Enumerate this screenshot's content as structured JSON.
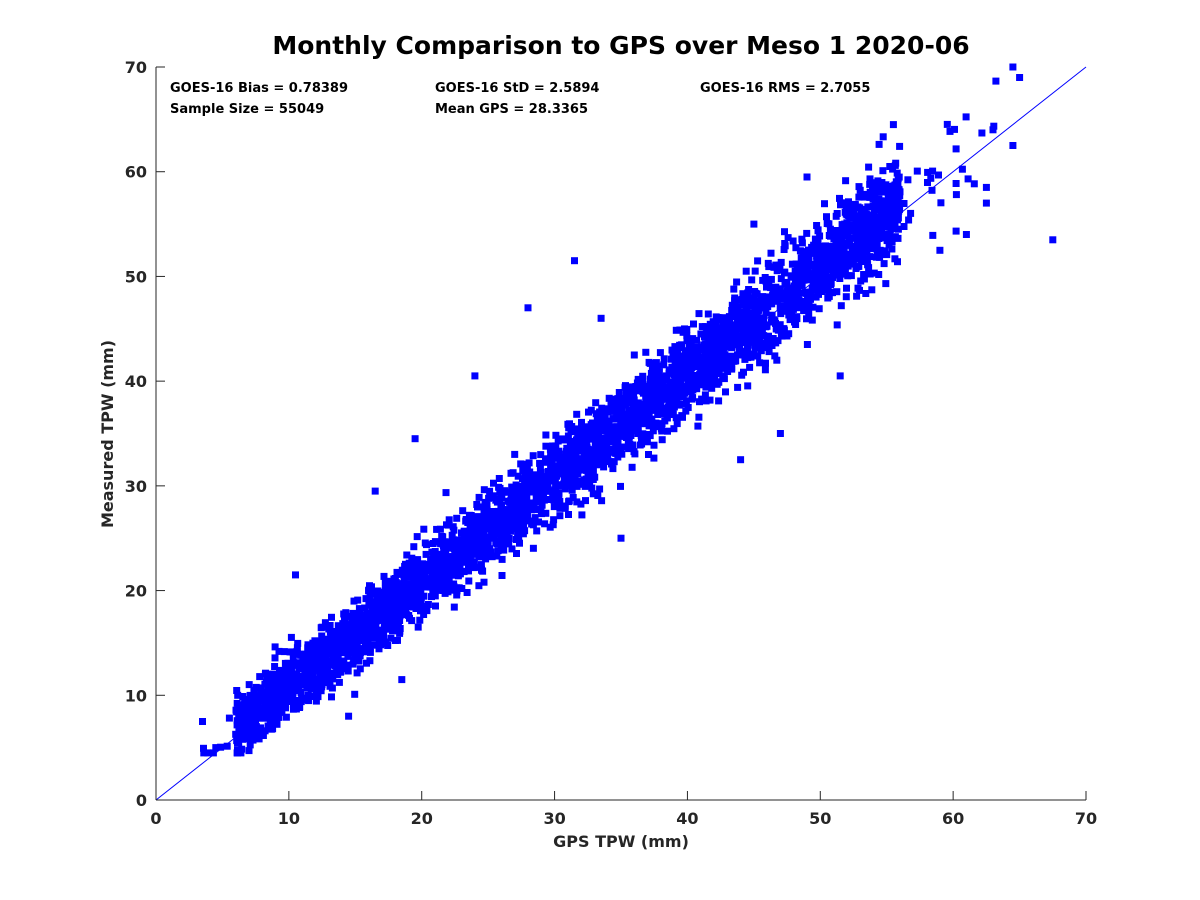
{
  "chart_data": {
    "type": "scatter",
    "title": "Monthly Comparison to GPS over Meso 1 2020-06",
    "xlabel": "GPS TPW (mm)",
    "ylabel": "Measured TPW (mm)",
    "xlim": [
      0,
      70
    ],
    "ylim": [
      0,
      70
    ],
    "x_ticks": [
      "0",
      "10",
      "20",
      "30",
      "40",
      "50",
      "60",
      "70"
    ],
    "y_ticks": [
      "0",
      "10",
      "20",
      "30",
      "40",
      "50",
      "60",
      "70"
    ],
    "grid": false,
    "reference_line": {
      "from": [
        0,
        0
      ],
      "to": [
        70,
        70
      ]
    },
    "marker_color": "#0000ff",
    "line_color": "#0000ff",
    "marker": "square",
    "stats": {
      "bias": "GOES-16 Bias = 0.78389",
      "std": "GOES-16 StD = 2.5894",
      "rms": "GOES-16 RMS = 2.7055",
      "sample_size": "Sample Size = 55049",
      "mean_gps": "Mean GPS = 28.3365"
    },
    "distribution": {
      "sample_size": 55049,
      "bias": 0.78389,
      "std": 2.5894,
      "mean_x": 28.3365
    },
    "outliers": [
      {
        "x": 67.5,
        "y": 53.5
      },
      {
        "x": 64.5,
        "y": 70.0
      },
      {
        "x": 65.0,
        "y": 69.0
      },
      {
        "x": 64.5,
        "y": 62.5
      },
      {
        "x": 63.0,
        "y": 64.0
      },
      {
        "x": 62.5,
        "y": 57.0
      },
      {
        "x": 62.5,
        "y": 58.5
      },
      {
        "x": 61.0,
        "y": 54.0
      },
      {
        "x": 59.0,
        "y": 52.5
      },
      {
        "x": 55.5,
        "y": 64.5
      },
      {
        "x": 51.5,
        "y": 40.5
      },
      {
        "x": 49.0,
        "y": 59.5
      },
      {
        "x": 47.0,
        "y": 35.0
      },
      {
        "x": 44.0,
        "y": 32.5
      },
      {
        "x": 39.5,
        "y": 39.5
      },
      {
        "x": 35.0,
        "y": 25.0
      },
      {
        "x": 33.5,
        "y": 46.0
      },
      {
        "x": 31.5,
        "y": 51.5
      },
      {
        "x": 28.0,
        "y": 47.0
      },
      {
        "x": 24.0,
        "y": 40.5
      },
      {
        "x": 19.5,
        "y": 34.5
      },
      {
        "x": 16.5,
        "y": 29.5
      },
      {
        "x": 10.5,
        "y": 21.5
      },
      {
        "x": 14.5,
        "y": 8.0
      },
      {
        "x": 18.5,
        "y": 11.5
      },
      {
        "x": 3.5,
        "y": 7.5
      },
      {
        "x": 4.5,
        "y": 5.0
      },
      {
        "x": 50.0,
        "y": 52.0
      },
      {
        "x": 45.0,
        "y": 55.0
      },
      {
        "x": 36.0,
        "y": 42.5
      },
      {
        "x": 27.0,
        "y": 33.0
      }
    ]
  }
}
